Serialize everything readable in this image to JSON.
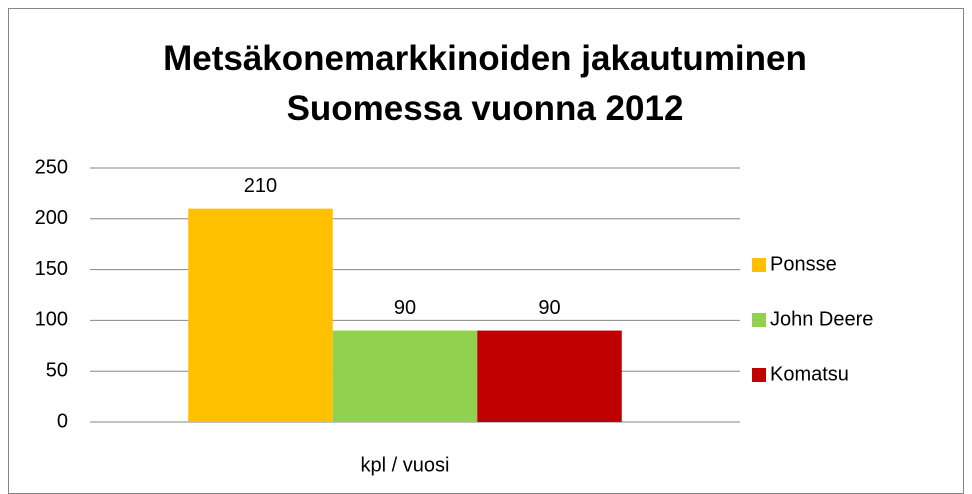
{
  "chart_data": {
    "type": "bar",
    "title": "Metsäkonemarkkinoiden jakautuminen Suomessa vuonna 2012",
    "categories": [
      "kpl / vuosi"
    ],
    "series": [
      {
        "name": "Ponsse",
        "color": "#FFC000",
        "values": [
          210
        ]
      },
      {
        "name": "John Deere",
        "color": "#92D050",
        "values": [
          90
        ]
      },
      {
        "name": "Komatsu",
        "color": "#C00000",
        "values": [
          90
        ]
      }
    ],
    "ylim": [
      0,
      250
    ],
    "yticks": [
      0,
      50,
      100,
      150,
      200,
      250
    ],
    "grid": true,
    "legend": "right"
  }
}
